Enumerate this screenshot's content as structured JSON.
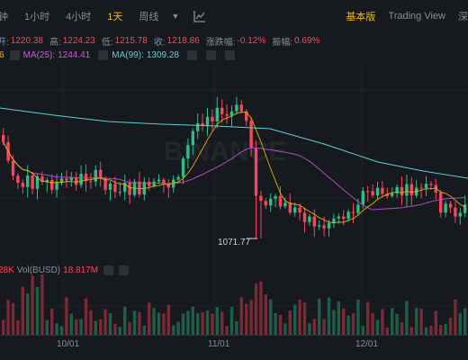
{
  "toolbar": {
    "intervals": [
      "钟",
      "1小时",
      "4小时",
      "1天",
      "周线"
    ],
    "active_interval": "1天",
    "modes": [
      "基本版",
      "Trading View",
      "深"
    ]
  },
  "ohlc": {
    "open_label": "开:",
    "open": "1220.38",
    "high_label": "高:",
    "high": "1224.23",
    "low_label": "低:",
    "low": "1215.78",
    "close_label": "收:",
    "close": "1218.86",
    "change_label": "涨跌幅:",
    "change": "-0.12%",
    "amplitude_label": "振幅:",
    "amplitude": "0.69%"
  },
  "ma": {
    "ma7_value": "6",
    "ma25_label": "MA(25):",
    "ma25_value": "1244.41",
    "ma99_label": "MA(99):",
    "ma99_value": "1309.28"
  },
  "volume": {
    "prefix": "28K",
    "label": "Vol(BUSD)",
    "value": "18.817M"
  },
  "low_marker": "1071.77",
  "xaxis": [
    "10/01",
    "11/01",
    "12/01"
  ],
  "watermark": "BINANCE",
  "colors": {
    "up": "#2ebd85",
    "down": "#f6465d",
    "accent": "#f0b90b",
    "ma7": "#f0b90b",
    "ma25": "#d05ad8",
    "ma99": "#5bd1d7"
  }
}
